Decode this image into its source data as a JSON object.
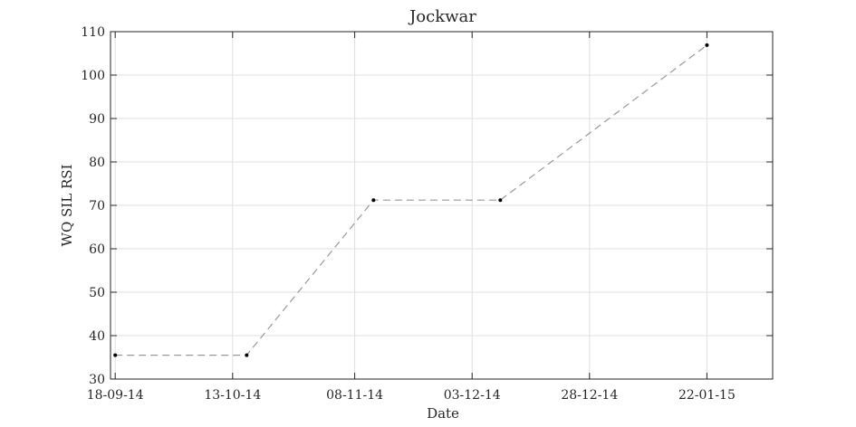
{
  "chart_data": {
    "type": "line",
    "title": "Jockwar",
    "xlabel": "Date",
    "ylabel": "WQ SIL RSI",
    "x_type": "date",
    "x_ticks": [
      "18-09-14",
      "13-10-14",
      "08-11-14",
      "03-12-14",
      "28-12-14",
      "22-01-15"
    ],
    "xlim": [
      "2014-09-17",
      "2015-02-05"
    ],
    "ylim": [
      30,
      110
    ],
    "y_ticks": [
      30,
      40,
      50,
      60,
      70,
      80,
      90,
      100,
      110
    ],
    "grid": true,
    "series": [
      {
        "x": [
          "2014-09-18",
          "2014-10-16",
          "2014-11-12",
          "2014-12-09",
          "2015-01-22"
        ],
        "y": [
          35.5,
          35.5,
          71.2,
          71.2,
          106.9
        ],
        "line_style": "dashed",
        "line_color": "#999999",
        "marker_color": "#000000"
      }
    ]
  }
}
